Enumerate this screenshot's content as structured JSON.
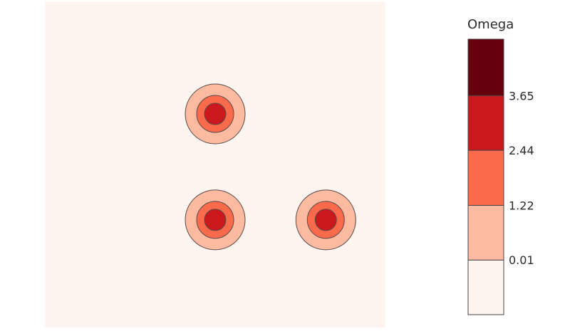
{
  "chart_data": {
    "type": "heatmap",
    "subtype": "contour",
    "title": "",
    "xlabel": "",
    "ylabel": "",
    "grid": false,
    "colorbar": {
      "title": "Omega",
      "position": "right",
      "range": [
        -1.2,
        4.9
      ],
      "tick_values": [
        0.01,
        1.22,
        2.44,
        3.65
      ],
      "tick_labels": [
        "0.01",
        "1.22",
        "2.44",
        "3.65"
      ],
      "levels": [
        {
          "from": -1.2,
          "to": 0.01,
          "color": "#fff5f0"
        },
        {
          "from": 0.01,
          "to": 1.22,
          "color": "#fcbba1"
        },
        {
          "from": 1.22,
          "to": 2.44,
          "color": "#fb6a4a"
        },
        {
          "from": 2.44,
          "to": 3.65,
          "color": "#cb181d"
        },
        {
          "from": 3.65,
          "to": 4.9,
          "color": "#67000d"
        }
      ]
    },
    "contour_thresholds": [
      0.01,
      1.22,
      2.44
    ],
    "contour_line_color": "#5a4a4a",
    "peak_value": 3.3,
    "domain": {
      "x": [
        0,
        1
      ],
      "y": [
        0,
        1
      ]
    },
    "vortices": [
      {
        "x": 0.5,
        "y": 0.33
      },
      {
        "x": 0.5,
        "y": 0.655
      },
      {
        "x": 0.825,
        "y": 0.33
      }
    ]
  }
}
